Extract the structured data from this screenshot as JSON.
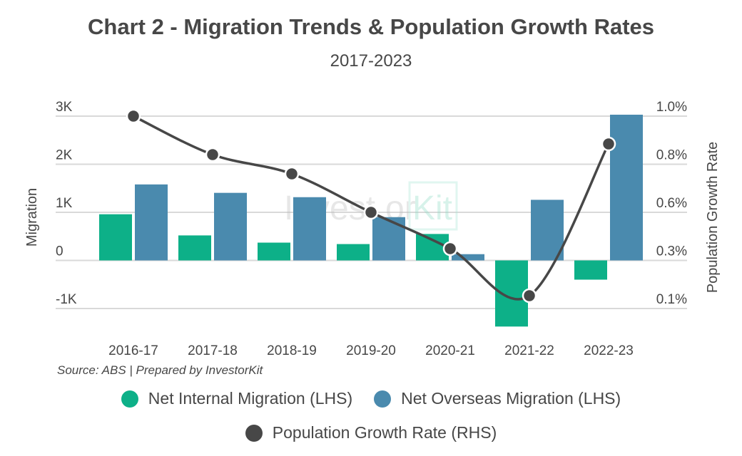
{
  "chart_data": {
    "type": "bar+line",
    "title": "Chart 2 - Migration Trends & Population Growth Rates",
    "subtitle": "2017-2023",
    "categories": [
      "2016-17",
      "2017-18",
      "2018-19",
      "2019-20",
      "2020-21",
      "2021-22",
      "2022-23"
    ],
    "series": [
      {
        "name": "Net Internal Migration (LHS)",
        "type": "bar",
        "axis": "left",
        "color": "#0db088",
        "values": [
          960,
          520,
          370,
          340,
          550,
          -1375,
          -400
        ]
      },
      {
        "name": "Net Overseas Migration (LHS)",
        "type": "bar",
        "axis": "left",
        "color": "#4a8aae",
        "values": [
          1580,
          1405,
          1315,
          900,
          130,
          1260,
          3030
        ]
      },
      {
        "name": "Population Growth Rate (RHS)",
        "type": "line",
        "axis": "right",
        "color": "#474747",
        "values": [
          1.0,
          0.82,
          0.73,
          0.55,
          0.38,
          0.16,
          0.87
        ]
      }
    ],
    "ylabel": "Migration",
    "y2label": "Population Growth Rate",
    "ylim": [
      -1000,
      3000
    ],
    "yticks": [
      {
        "v": 3000,
        "label": "3K"
      },
      {
        "v": 2000,
        "label": "2K"
      },
      {
        "v": 1000,
        "label": "1K"
      },
      {
        "v": 0,
        "label": "0"
      },
      {
        "v": -1000,
        "label": "-1K"
      }
    ],
    "y2lim": [
      0.1,
      1.0
    ],
    "y2ticks": [
      "1.0%",
      "0.8%",
      "0.6%",
      "0.3%",
      "0.1%"
    ],
    "grid": true,
    "legend_position": "bottom",
    "source": "Source: ABS | Prepared by InvestorKit",
    "watermark": "InvestorKit"
  }
}
